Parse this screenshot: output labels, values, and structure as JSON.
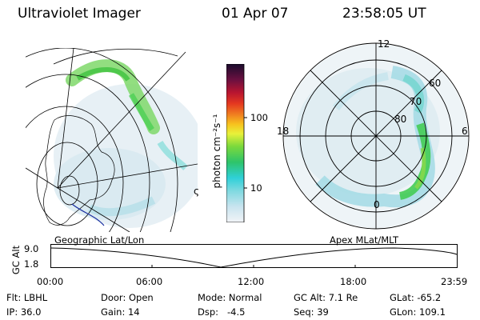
{
  "header": {
    "instrument": "Ultraviolet Imager",
    "date": "01 Apr 07",
    "time": "23:58:05 UT"
  },
  "colorbar": {
    "unit_label": "photon cm⁻²s⁻¹",
    "ticks": [
      "100",
      "10"
    ]
  },
  "polar_plot": {
    "mlt_labels": [
      "12",
      "18",
      "6",
      "0"
    ],
    "lat_labels": [
      "60",
      "70",
      "80"
    ]
  },
  "map": {
    "corner_char": "ς"
  },
  "altitude": {
    "axis_label": "GC Alt",
    "y_ticks": [
      "9.0",
      "1.8"
    ],
    "left_title": "Geographic Lat/Lon",
    "right_title": "Apex MLat/MLT",
    "time_ticks": [
      "00:00",
      "06:00",
      "12:00",
      "18:00",
      "23:59"
    ]
  },
  "status": {
    "flt": "Flt: LBHL",
    "ip": "IP: 36.0",
    "door": "Door: Open",
    "gain": "Gain: 14",
    "mode": "Mode: Normal",
    "dsp": "Dsp:   -4.5",
    "gc_alt": "GC Alt: 7.1 Re",
    "seq": "Seq: 39",
    "glat": "GLat: -65.2",
    "glon": "GLon: 109.1"
  }
}
